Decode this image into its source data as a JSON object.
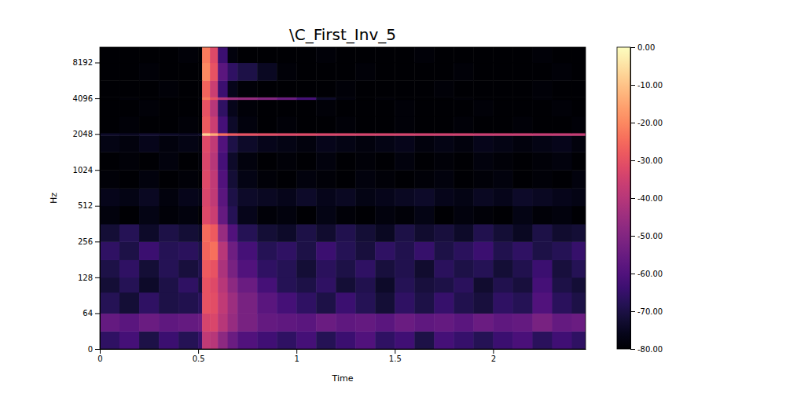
{
  "chart_data": {
    "type": "heatmap",
    "title": "\\C_First_Inv_5",
    "x_label": "Time",
    "y_label": "Hz",
    "log": "y",
    "xlim": [
      0,
      2.47
    ],
    "xticks": [
      0,
      0.5,
      1,
      1.5,
      2
    ],
    "ylim": [
      0,
      11025
    ],
    "yticks": [
      0,
      64,
      128,
      256,
      512,
      1024,
      2048,
      4096,
      8192
    ],
    "x_bins": [
      0,
      0.1,
      0.2,
      0.3,
      0.4,
      0.5,
      0.52,
      0.56,
      0.6,
      0.65,
      0.7,
      0.8,
      0.9,
      1.0,
      1.1,
      1.2,
      1.3,
      1.4,
      1.5,
      1.6,
      1.7,
      1.8,
      1.9,
      2.0,
      2.1,
      2.2,
      2.3,
      2.4,
      2.47
    ],
    "y_bins": [
      0,
      32,
      64,
      96,
      128,
      180,
      256,
      360,
      512,
      720,
      1024,
      1450,
      2000,
      2100,
      2900,
      4000,
      4200,
      5800,
      8192,
      11025
    ],
    "z": [
      [
        -66,
        -62,
        -70,
        -64,
        -68,
        -65,
        -38,
        -40,
        -48,
        -55,
        -60,
        -63,
        -66,
        -62,
        -68,
        -64,
        -60,
        -66,
        -63,
        -70,
        -62,
        -65,
        -68,
        -64,
        -61,
        -67,
        -63,
        -66
      ],
      [
        -56,
        -58,
        -55,
        -57,
        -56,
        -55,
        -34,
        -33,
        -40,
        -46,
        -52,
        -56,
        -57,
        -58,
        -55,
        -57,
        -56,
        -58,
        -55,
        -57,
        -56,
        -58,
        -55,
        -57,
        -56,
        -52,
        -56,
        -55
      ],
      [
        -68,
        -72,
        -66,
        -70,
        -69,
        -67,
        -30,
        -31,
        -38,
        -45,
        -52,
        -58,
        -62,
        -66,
        -70,
        -64,
        -68,
        -72,
        -66,
        -70,
        -65,
        -69,
        -71,
        -66,
        -68,
        -60,
        -67,
        -70
      ],
      [
        -72,
        -68,
        -74,
        -70,
        -66,
        -71,
        -30,
        -32,
        -40,
        -48,
        -55,
        -62,
        -68,
        -70,
        -66,
        -72,
        -69,
        -74,
        -68,
        -71,
        -70,
        -67,
        -73,
        -69,
        -71,
        -62,
        -70,
        -72
      ],
      [
        -70,
        -66,
        -72,
        -68,
        -71,
        -69,
        -28,
        -30,
        -42,
        -52,
        -60,
        -66,
        -68,
        -72,
        -67,
        -70,
        -66,
        -71,
        -69,
        -73,
        -67,
        -70,
        -68,
        -72,
        -69,
        -64,
        -71,
        -68
      ],
      [
        -66,
        -70,
        -64,
        -68,
        -67,
        -70,
        -26,
        -24,
        -40,
        -54,
        -62,
        -68,
        -66,
        -70,
        -64,
        -68,
        -71,
        -66,
        -69,
        -65,
        -70,
        -67,
        -64,
        -69,
        -66,
        -70,
        -68,
        -65
      ],
      [
        -72,
        -68,
        -74,
        -70,
        -72,
        -74,
        -25,
        -28,
        -46,
        -60,
        -68,
        -72,
        -74,
        -70,
        -73,
        -69,
        -72,
        -75,
        -70,
        -73,
        -71,
        -74,
        -69,
        -72,
        -75,
        -70,
        -73,
        -72
      ],
      [
        -78,
        -80,
        -77,
        -79,
        -78,
        -80,
        -32,
        -36,
        -56,
        -68,
        -76,
        -79,
        -78,
        -80,
        -77,
        -79,
        -80,
        -78,
        -79,
        -77,
        -80,
        -78,
        -79,
        -80,
        -77,
        -79,
        -78,
        -80
      ],
      [
        -76,
        -77,
        -75,
        -78,
        -76,
        -77,
        -33,
        -38,
        -58,
        -70,
        -74,
        -75,
        -76,
        -74,
        -76,
        -75,
        -77,
        -76,
        -75,
        -74,
        -76,
        -77,
        -75,
        -76,
        -74,
        -75,
        -76,
        -77
      ],
      [
        -79,
        -80,
        -78,
        -80,
        -79,
        -80,
        -32,
        -38,
        -60,
        -72,
        -77,
        -79,
        -80,
        -78,
        -79,
        -80,
        -78,
        -79,
        -80,
        -79,
        -78,
        -80,
        -79,
        -78,
        -80,
        -79,
        -80,
        -78
      ],
      [
        -80,
        -79,
        -80,
        -78,
        -80,
        -79,
        -33,
        -40,
        -62,
        -74,
        -78,
        -80,
        -79,
        -80,
        -78,
        -80,
        -79,
        -80,
        -78,
        -80,
        -79,
        -80,
        -78,
        -79,
        -80,
        -79,
        -78,
        -80
      ],
      [
        -77,
        -78,
        -76,
        -78,
        -77,
        -78,
        -32,
        -38,
        -60,
        -70,
        -74,
        -76,
        -77,
        -78,
        -76,
        -77,
        -78,
        -77,
        -76,
        -78,
        -77,
        -78,
        -76,
        -77,
        -78,
        -77,
        -76,
        -78
      ],
      [
        -74,
        -75,
        -73,
        -74,
        -75,
        -74,
        -8,
        -14,
        -24,
        -28,
        -30,
        -31,
        -32,
        -32,
        -33,
        -33,
        -34,
        -34,
        -34,
        -35,
        -35,
        -35,
        -36,
        -36,
        -36,
        -37,
        -37,
        -37
      ],
      [
        -80,
        -79,
        -80,
        -80,
        -79,
        -80,
        -28,
        -36,
        -62,
        -74,
        -78,
        -80,
        -79,
        -80,
        -80,
        -79,
        -80,
        -80,
        -79,
        -80,
        -80,
        -79,
        -80,
        -80,
        -79,
        -80,
        -80,
        -79
      ],
      [
        -80,
        -80,
        -79,
        -80,
        -80,
        -80,
        -30,
        -40,
        -66,
        -76,
        -79,
        -80,
        -80,
        -80,
        -79,
        -80,
        -80,
        -80,
        -79,
        -80,
        -80,
        -80,
        -79,
        -80,
        -80,
        -80,
        -79,
        -80
      ],
      [
        -80,
        -79,
        -80,
        -80,
        -80,
        -79,
        -22,
        -30,
        -40,
        -44,
        -46,
        -50,
        -55,
        -62,
        -74,
        -78,
        -80,
        -79,
        -80,
        -80,
        -80,
        -79,
        -80,
        -80,
        -80,
        -79,
        -80,
        -80
      ],
      [
        -80,
        -80,
        -80,
        -79,
        -80,
        -80,
        -26,
        -36,
        -64,
        -76,
        -79,
        -80,
        -80,
        -80,
        -80,
        -79,
        -80,
        -80,
        -80,
        -80,
        -79,
        -80,
        -80,
        -80,
        -80,
        -79,
        -80,
        -80
      ],
      [
        -80,
        -80,
        -79,
        -80,
        -80,
        -80,
        -20,
        -30,
        -58,
        -66,
        -70,
        -75,
        -79,
        -80,
        -80,
        -80,
        -79,
        -80,
        -80,
        -80,
        -80,
        -79,
        -80,
        -80,
        -80,
        -80,
        -79,
        -80
      ],
      [
        -80,
        -80,
        -80,
        -80,
        -79,
        -80,
        -22,
        -32,
        -64,
        -78,
        -80,
        -80,
        -80,
        -80,
        -79,
        -80,
        -80,
        -80,
        -80,
        -79,
        -80,
        -80,
        -80,
        -80,
        -80,
        -79,
        -80,
        -80
      ]
    ],
    "zlim": [
      -80,
      0
    ],
    "zticks": [
      {
        "value": 0,
        "label": "0.00"
      },
      {
        "value": -10,
        "label": "-10.00"
      },
      {
        "value": -20,
        "label": "-20.00"
      },
      {
        "value": -30,
        "label": "-30.00"
      },
      {
        "value": -40,
        "label": "-40.00"
      },
      {
        "value": -50,
        "label": "-50.00"
      },
      {
        "value": -60,
        "label": "-60.00"
      },
      {
        "value": -70,
        "label": "-70.00"
      },
      {
        "value": -80,
        "label": "-80.00"
      }
    ]
  }
}
